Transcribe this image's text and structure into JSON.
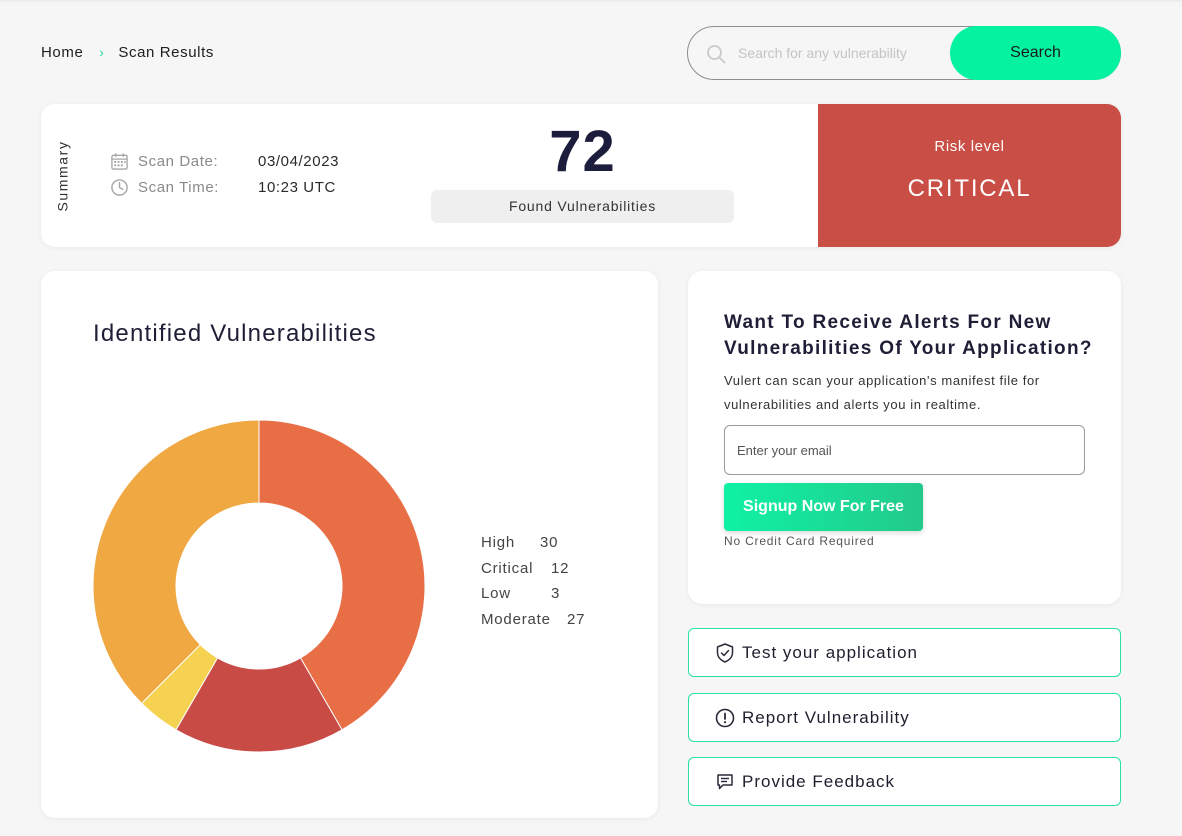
{
  "breadcrumb": {
    "home": "Home",
    "separator": "›",
    "current": "Scan Results"
  },
  "search": {
    "placeholder": "Search for any vulnerability",
    "button_label": "Search"
  },
  "summary": {
    "side_label": "Summary",
    "scan_date_label": "Scan Date:",
    "scan_date_value": "03/04/2023",
    "scan_time_label": "Scan Time:",
    "scan_time_value": "10:23 UTC",
    "found_count": "72",
    "found_label": "Found Vulnerabilities",
    "risk_label": "Risk level",
    "risk_value": "CRITICAL"
  },
  "vulnerabilities": {
    "title": "Identified Vulnerabilities",
    "legend": [
      {
        "name": "High",
        "value": "30"
      },
      {
        "name": "Critical",
        "value": "12"
      },
      {
        "name": "Low",
        "value": "3"
      },
      {
        "name": "Moderate",
        "value": "27"
      }
    ]
  },
  "chart_data": {
    "type": "pie",
    "categories": [
      "High",
      "Critical",
      "Low",
      "Moderate"
    ],
    "values": [
      30,
      12,
      3,
      27
    ],
    "colors": [
      "#e86e46",
      "#c84b46",
      "#f5d24f",
      "#f0a842"
    ],
    "donut": true,
    "title": "Identified Vulnerabilities",
    "legend_position": "right"
  },
  "alerts": {
    "title": "Want To Receive Alerts For New Vulnerabilities Of Your Application?",
    "description": "Vulert can scan your application's manifest file for vulnerabilities and alerts you in realtime.",
    "email_placeholder": "Enter your email",
    "signup_label": "Signup Now For Free",
    "note": "No Credit Card Required"
  },
  "actions": {
    "test": "Test your application",
    "report": "Report Vulnerability",
    "feedback": "Provide Feedback"
  },
  "icons": {
    "search": "search-icon",
    "calendar": "calendar-icon",
    "clock": "clock-icon",
    "shield": "shield-check-icon",
    "alert": "alert-circle-icon",
    "feedback": "message-icon"
  },
  "colors": {
    "accent": "#05f2a0",
    "risk_critical": "#c94f46",
    "action_border": "#27e3a0"
  }
}
